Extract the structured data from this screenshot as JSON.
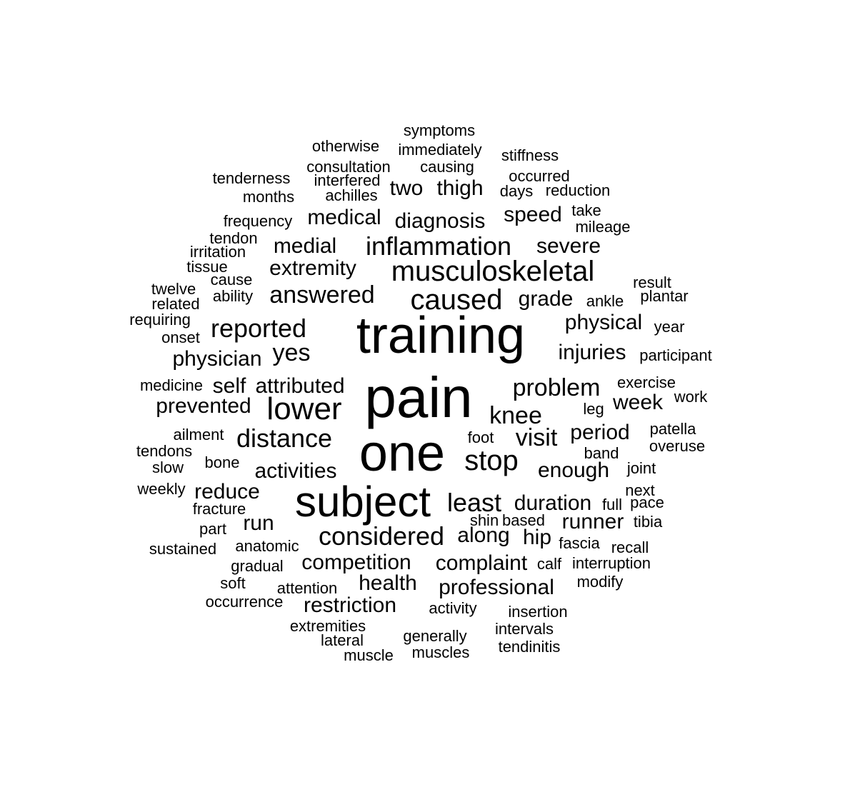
{
  "words": [
    {
      "text": "symptoms"
    },
    {
      "text": "otherwise"
    },
    {
      "text": "immediately"
    },
    {
      "text": "stiffness"
    },
    {
      "text": "consultation"
    },
    {
      "text": "causing"
    },
    {
      "text": "tenderness"
    },
    {
      "text": "interfered"
    },
    {
      "text": "occurred"
    },
    {
      "text": "two"
    },
    {
      "text": "thigh"
    },
    {
      "text": "months"
    },
    {
      "text": "achilles"
    },
    {
      "text": "days"
    },
    {
      "text": "reduction"
    },
    {
      "text": "take"
    },
    {
      "text": "medical"
    },
    {
      "text": "speed"
    },
    {
      "text": "frequency"
    },
    {
      "text": "diagnosis"
    },
    {
      "text": "mileage"
    },
    {
      "text": "tendon"
    },
    {
      "text": "inflammation"
    },
    {
      "text": "medial"
    },
    {
      "text": "severe"
    },
    {
      "text": "irritation"
    },
    {
      "text": "tissue"
    },
    {
      "text": "extremity"
    },
    {
      "text": "musculoskeletal"
    },
    {
      "text": "cause"
    },
    {
      "text": "result"
    },
    {
      "text": "twelve"
    },
    {
      "text": "answered"
    },
    {
      "text": "caused"
    },
    {
      "text": "plantar"
    },
    {
      "text": "ability"
    },
    {
      "text": "grade"
    },
    {
      "text": "ankle"
    },
    {
      "text": "related"
    },
    {
      "text": "requiring"
    },
    {
      "text": "physical"
    },
    {
      "text": "training"
    },
    {
      "text": "reported"
    },
    {
      "text": "year"
    },
    {
      "text": "onset"
    },
    {
      "text": "yes"
    },
    {
      "text": "injuries"
    },
    {
      "text": "physician"
    },
    {
      "text": "participant"
    },
    {
      "text": "exercise"
    },
    {
      "text": "medicine"
    },
    {
      "text": "self"
    },
    {
      "text": "attributed"
    },
    {
      "text": "problem"
    },
    {
      "text": "work"
    },
    {
      "text": "pain"
    },
    {
      "text": "prevented"
    },
    {
      "text": "lower"
    },
    {
      "text": "week"
    },
    {
      "text": "leg"
    },
    {
      "text": "knee"
    },
    {
      "text": "patella"
    },
    {
      "text": "period"
    },
    {
      "text": "ailment"
    },
    {
      "text": "distance"
    },
    {
      "text": "foot"
    },
    {
      "text": "visit"
    },
    {
      "text": "overuse"
    },
    {
      "text": "tendons"
    },
    {
      "text": "one"
    },
    {
      "text": "band"
    },
    {
      "text": "bone"
    },
    {
      "text": "stop"
    },
    {
      "text": "slow"
    },
    {
      "text": "activities"
    },
    {
      "text": "enough"
    },
    {
      "text": "joint"
    },
    {
      "text": "weekly"
    },
    {
      "text": "reduce"
    },
    {
      "text": "next"
    },
    {
      "text": "subject"
    },
    {
      "text": "least"
    },
    {
      "text": "duration"
    },
    {
      "text": "full"
    },
    {
      "text": "pace"
    },
    {
      "text": "fracture"
    },
    {
      "text": "shin"
    },
    {
      "text": "based"
    },
    {
      "text": "run"
    },
    {
      "text": "runner"
    },
    {
      "text": "tibia"
    },
    {
      "text": "part"
    },
    {
      "text": "considered"
    },
    {
      "text": "along"
    },
    {
      "text": "hip"
    },
    {
      "text": "anatomic"
    },
    {
      "text": "fascia"
    },
    {
      "text": "sustained"
    },
    {
      "text": "recall"
    },
    {
      "text": "competition"
    },
    {
      "text": "complaint"
    },
    {
      "text": "calf"
    },
    {
      "text": "interruption"
    },
    {
      "text": "gradual"
    },
    {
      "text": "modify"
    },
    {
      "text": "soft"
    },
    {
      "text": "health"
    },
    {
      "text": "attention"
    },
    {
      "text": "professional"
    },
    {
      "text": "occurrence"
    },
    {
      "text": "restriction"
    },
    {
      "text": "activity"
    },
    {
      "text": "insertion"
    },
    {
      "text": "extremities"
    },
    {
      "text": "intervals"
    },
    {
      "text": "generally"
    },
    {
      "text": "lateral"
    },
    {
      "text": "tendinitis"
    },
    {
      "text": "muscle"
    },
    {
      "text": "muscles"
    }
  ]
}
